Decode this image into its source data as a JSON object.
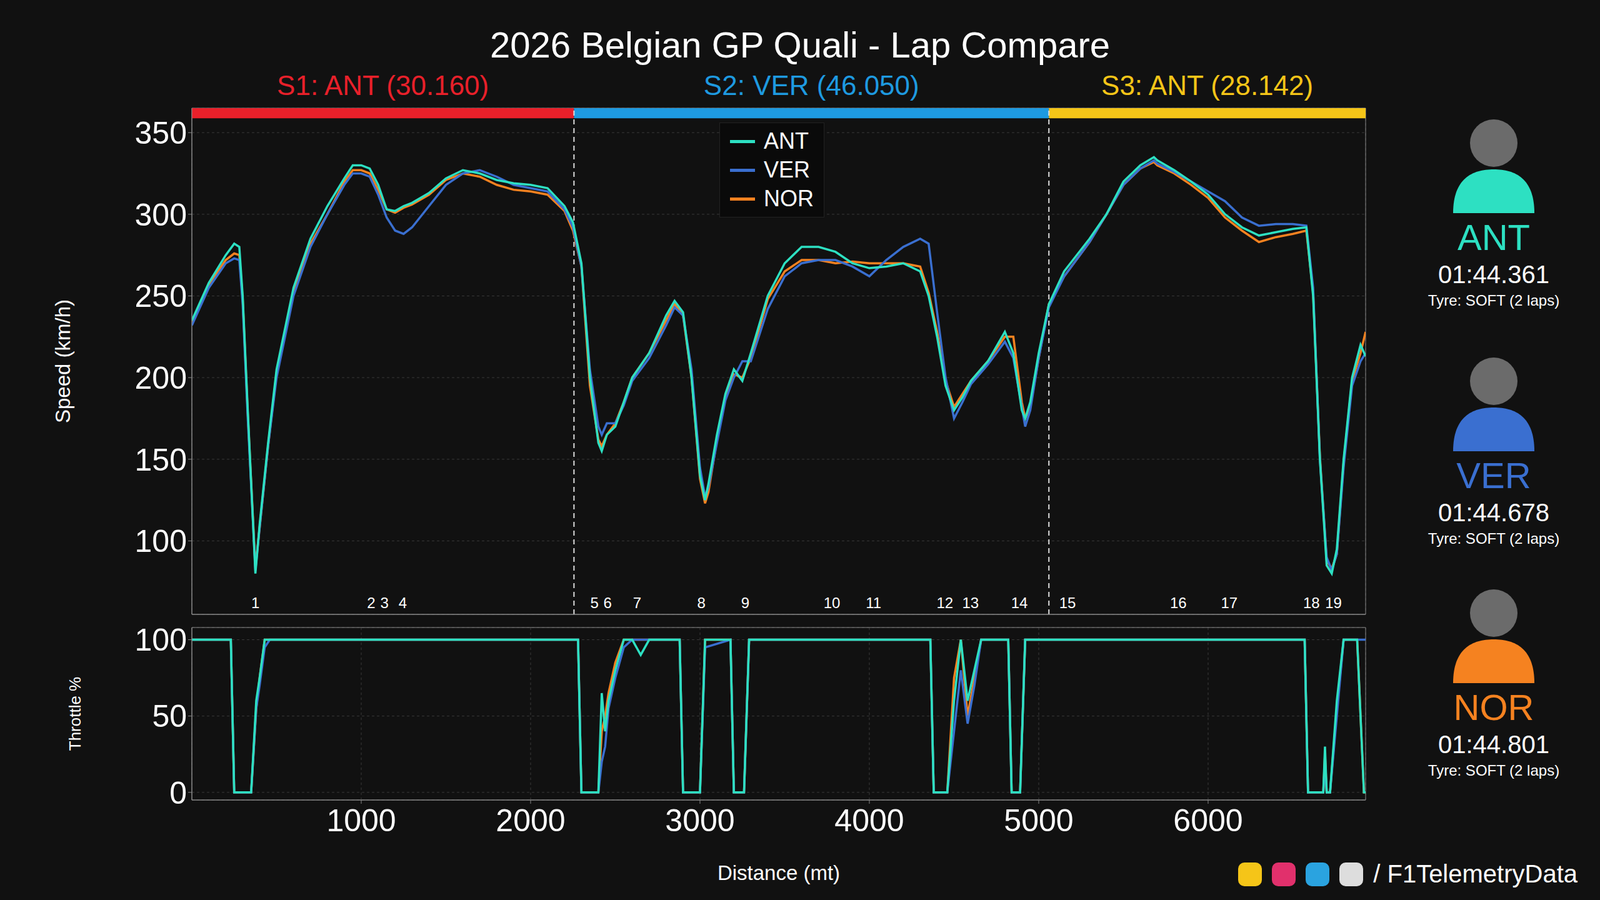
{
  "title": "2026 Belgian GP Quali - Lap Compare",
  "sectors": [
    {
      "label": "S1: ANT (30.160)",
      "color": "#e8202a",
      "start": 0,
      "end": 2256
    },
    {
      "label": "S2: VER (46.050)",
      "color": "#1e9ae0",
      "start": 2256,
      "end": 5060
    },
    {
      "label": "S3: ANT (28.142)",
      "color": "#f5c518",
      "start": 5060,
      "end": 6930
    }
  ],
  "drivers": [
    {
      "name": "ANT",
      "time": "01:44.361",
      "tyre": "Tyre: SOFT (2 laps)"
    },
    {
      "name": "VER",
      "time": "01:44.678",
      "tyre": "Tyre: SOFT (2 laps)"
    },
    {
      "name": "NOR",
      "time": "01:44.801",
      "tyre": "Tyre: SOFT (2 laps)"
    }
  ],
  "footer": "/ F1TelemetryData",
  "chart_data": [
    {
      "type": "line",
      "y_label": "Speed (km/h)",
      "xlim": [
        0,
        6930
      ],
      "ylim": [
        55,
        365
      ],
      "xticks": [
        1000,
        2000,
        3000,
        4000,
        5000,
        6000
      ],
      "yticks": [
        100,
        150,
        200,
        250,
        300,
        350
      ],
      "grid": true,
      "legend": "top",
      "tick_labels": "y",
      "corners": [
        {
          "label": "1",
          "x": 375
        },
        {
          "label": "2",
          "x": 1059
        },
        {
          "label": "3",
          "x": 1137
        },
        {
          "label": "4",
          "x": 1245
        },
        {
          "label": "5",
          "x": 2377
        },
        {
          "label": "6",
          "x": 2455
        },
        {
          "label": "7",
          "x": 2629
        },
        {
          "label": "8",
          "x": 3008
        },
        {
          "label": "9",
          "x": 3267
        },
        {
          "label": "10",
          "x": 3779
        },
        {
          "label": "11",
          "x": 4025
        },
        {
          "label": "12",
          "x": 4446
        },
        {
          "label": "13",
          "x": 4597
        },
        {
          "label": "14",
          "x": 4886
        },
        {
          "label": "15",
          "x": 5170
        },
        {
          "label": "16",
          "x": 5824
        },
        {
          "label": "17",
          "x": 6125
        },
        {
          "label": "18",
          "x": 6610
        },
        {
          "label": "19",
          "x": 6740
        }
      ],
      "x": [
        0,
        100,
        200,
        250,
        280,
        300,
        330,
        375,
        400,
        450,
        500,
        600,
        700,
        800,
        900,
        950,
        1000,
        1050,
        1100,
        1150,
        1200,
        1250,
        1300,
        1400,
        1500,
        1600,
        1700,
        1800,
        1900,
        2000,
        2100,
        2200,
        2250,
        2300,
        2350,
        2400,
        2420,
        2450,
        2500,
        2550,
        2600,
        2700,
        2800,
        2850,
        2900,
        2950,
        3000,
        3030,
        3050,
        3100,
        3150,
        3200,
        3250,
        3300,
        3400,
        3500,
        3600,
        3700,
        3800,
        3900,
        4000,
        4100,
        4200,
        4300,
        4350,
        4400,
        4450,
        4500,
        4550,
        4600,
        4700,
        4800,
        4850,
        4900,
        4920,
        4950,
        5000,
        5060,
        5150,
        5300,
        5400,
        5500,
        5600,
        5680,
        5700,
        5800,
        5900,
        6000,
        6100,
        6200,
        6300,
        6400,
        6500,
        6580,
        6620,
        6660,
        6700,
        6730,
        6760,
        6800,
        6850,
        6900,
        6930
      ],
      "series": [
        {
          "name": "ANT",
          "color": "#2de0c2",
          "values": [
            235,
            258,
            275,
            282,
            280,
            250,
            180,
            80,
            110,
            160,
            205,
            255,
            285,
            305,
            322,
            330,
            330,
            328,
            318,
            303,
            302,
            305,
            307,
            313,
            322,
            327,
            325,
            321,
            319,
            318,
            316,
            305,
            295,
            270,
            200,
            160,
            155,
            165,
            170,
            185,
            200,
            215,
            238,
            247,
            240,
            200,
            140,
            125,
            135,
            165,
            190,
            205,
            198,
            215,
            250,
            270,
            280,
            280,
            277,
            270,
            267,
            268,
            270,
            265,
            250,
            225,
            195,
            180,
            188,
            198,
            210,
            228,
            215,
            180,
            175,
            185,
            215,
            245,
            265,
            285,
            300,
            320,
            330,
            335,
            333,
            327,
            320,
            312,
            300,
            292,
            287,
            289,
            291,
            292,
            250,
            150,
            85,
            80,
            95,
            150,
            200,
            220,
            213
          ]
        },
        {
          "name": "VER",
          "color": "#3a6fd0",
          "values": [
            232,
            255,
            270,
            273,
            272,
            245,
            175,
            82,
            108,
            158,
            200,
            250,
            280,
            300,
            318,
            325,
            325,
            323,
            312,
            298,
            290,
            288,
            292,
            305,
            318,
            325,
            327,
            323,
            318,
            316,
            314,
            303,
            292,
            268,
            205,
            170,
            165,
            172,
            172,
            183,
            198,
            212,
            232,
            243,
            238,
            205,
            145,
            127,
            133,
            160,
            186,
            200,
            210,
            210,
            242,
            262,
            270,
            272,
            272,
            268,
            262,
            272,
            280,
            285,
            282,
            240,
            200,
            175,
            185,
            196,
            208,
            222,
            212,
            182,
            170,
            180,
            212,
            243,
            262,
            283,
            300,
            318,
            328,
            333,
            331,
            326,
            320,
            314,
            308,
            298,
            293,
            294,
            294,
            293,
            255,
            150,
            90,
            82,
            92,
            145,
            195,
            210,
            215
          ]
        },
        {
          "name": "NOR",
          "color": "#f58220",
          "values": [
            233,
            257,
            272,
            276,
            275,
            248,
            178,
            84,
            108,
            158,
            203,
            253,
            282,
            300,
            320,
            327,
            327,
            325,
            315,
            303,
            301,
            304,
            306,
            312,
            321,
            325,
            323,
            318,
            315,
            314,
            312,
            302,
            290,
            268,
            195,
            162,
            158,
            165,
            172,
            185,
            200,
            215,
            235,
            245,
            238,
            200,
            138,
            123,
            130,
            162,
            188,
            202,
            200,
            212,
            248,
            265,
            272,
            272,
            270,
            271,
            270,
            270,
            270,
            268,
            252,
            228,
            198,
            182,
            190,
            198,
            210,
            225,
            225,
            185,
            175,
            182,
            212,
            245,
            262,
            283,
            300,
            318,
            328,
            332,
            330,
            325,
            318,
            310,
            298,
            290,
            283,
            286,
            288,
            290,
            252,
            152,
            88,
            83,
            92,
            148,
            198,
            215,
            228
          ]
        }
      ]
    },
    {
      "type": "line",
      "y_label": "Throttle %",
      "x_label": "Distance (mt)",
      "xlim": [
        0,
        6930
      ],
      "ylim": [
        -5,
        108
      ],
      "xticks": [
        1000,
        2000,
        3000,
        4000,
        5000,
        6000
      ],
      "yticks": [
        0,
        50,
        100
      ],
      "grid": true,
      "tick_labels": true,
      "x": [
        0,
        230,
        250,
        350,
        380,
        400,
        430,
        460,
        2280,
        2300,
        2400,
        2420,
        2440,
        2460,
        2500,
        2550,
        2600,
        2650,
        2700,
        2880,
        2900,
        3000,
        3030,
        3180,
        3200,
        3260,
        3290,
        4360,
        4380,
        4460,
        4500,
        4540,
        4580,
        4620,
        4660,
        4820,
        4840,
        4890,
        4920,
        6570,
        6590,
        6680,
        6690,
        6700,
        6720,
        6760,
        6800,
        6880,
        6920,
        6930
      ],
      "series": [
        {
          "name": "ANT",
          "color": "#2de0c2",
          "values": [
            100,
            100,
            0,
            0,
            60,
            75,
            100,
            100,
            100,
            0,
            0,
            65,
            40,
            60,
            80,
            100,
            100,
            90,
            100,
            100,
            0,
            0,
            100,
            100,
            0,
            0,
            100,
            100,
            0,
            0,
            60,
            100,
            60,
            80,
            100,
            100,
            0,
            0,
            100,
            100,
            0,
            0,
            30,
            0,
            0,
            60,
            100,
            100,
            0,
            0
          ]
        },
        {
          "name": "VER",
          "color": "#3a6fd0",
          "values": [
            100,
            100,
            0,
            0,
            55,
            70,
            95,
            100,
            100,
            0,
            0,
            20,
            30,
            55,
            75,
            95,
            100,
            100,
            100,
            100,
            0,
            0,
            95,
            100,
            0,
            0,
            100,
            100,
            0,
            0,
            40,
            80,
            45,
            70,
            100,
            100,
            0,
            0,
            100,
            100,
            0,
            0,
            20,
            0,
            0,
            50,
            100,
            100,
            100,
            100
          ]
        },
        {
          "name": "NOR",
          "color": "#f58220",
          "values": [
            100,
            100,
            0,
            0,
            55,
            75,
            100,
            100,
            100,
            0,
            0,
            40,
            50,
            65,
            85,
            100,
            100,
            100,
            100,
            100,
            0,
            0,
            100,
            100,
            0,
            0,
            100,
            100,
            0,
            0,
            75,
            100,
            50,
            75,
            100,
            100,
            0,
            0,
            100,
            100,
            0,
            0,
            25,
            0,
            0,
            55,
            100,
            100,
            0,
            0
          ]
        }
      ]
    }
  ]
}
